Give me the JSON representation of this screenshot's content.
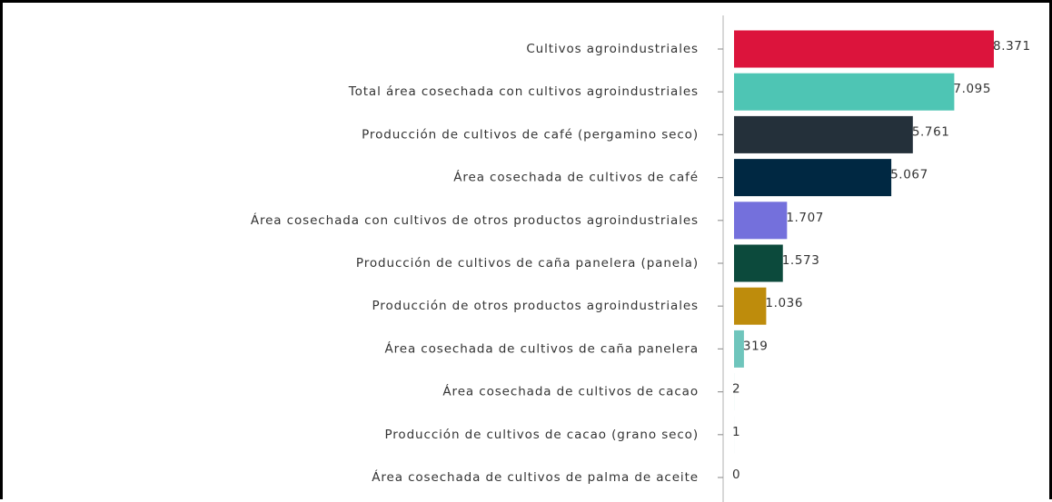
{
  "chart_data": {
    "type": "bar",
    "orientation": "horizontal",
    "title": "",
    "xlabel": "",
    "ylabel": "",
    "grid": false,
    "categories": [
      "Cultivos agroindustriales",
      "Total área cosechada con cultivos agroindustriales",
      "Producción de cultivos de café (pergamino seco)",
      "Área cosechada de cultivos de café",
      "Área cosechada con cultivos de otros productos agroindustriales",
      "Producción de cultivos de caña panelera (panela)",
      "Producción de otros productos agroindustriales",
      "Área cosechada de cultivos de caña panelera",
      "Área cosechada de cultivos de cacao",
      "Producción de cultivos de cacao (grano seco)",
      "Área cosechada de cultivos de palma de aceite"
    ],
    "values": [
      8371,
      7095,
      5761,
      5067,
      1707,
      1573,
      1036,
      319,
      2,
      1,
      0
    ],
    "value_labels": [
      "8.371",
      "7.095",
      "5.761",
      "5.067",
      "1.707",
      "1.573",
      "1.036",
      "319",
      "2",
      "1",
      "0"
    ],
    "colors": [
      "#DC143C",
      "#4EC5B4",
      "#24303A",
      "#002842",
      "#7470DC",
      "#0C4A3C",
      "#BE8C0C",
      "#6FC5BC",
      "#6FC5BC",
      "#6FC5BC",
      "#6FC5BC"
    ],
    "xlim": [
      0,
      8371
    ]
  }
}
